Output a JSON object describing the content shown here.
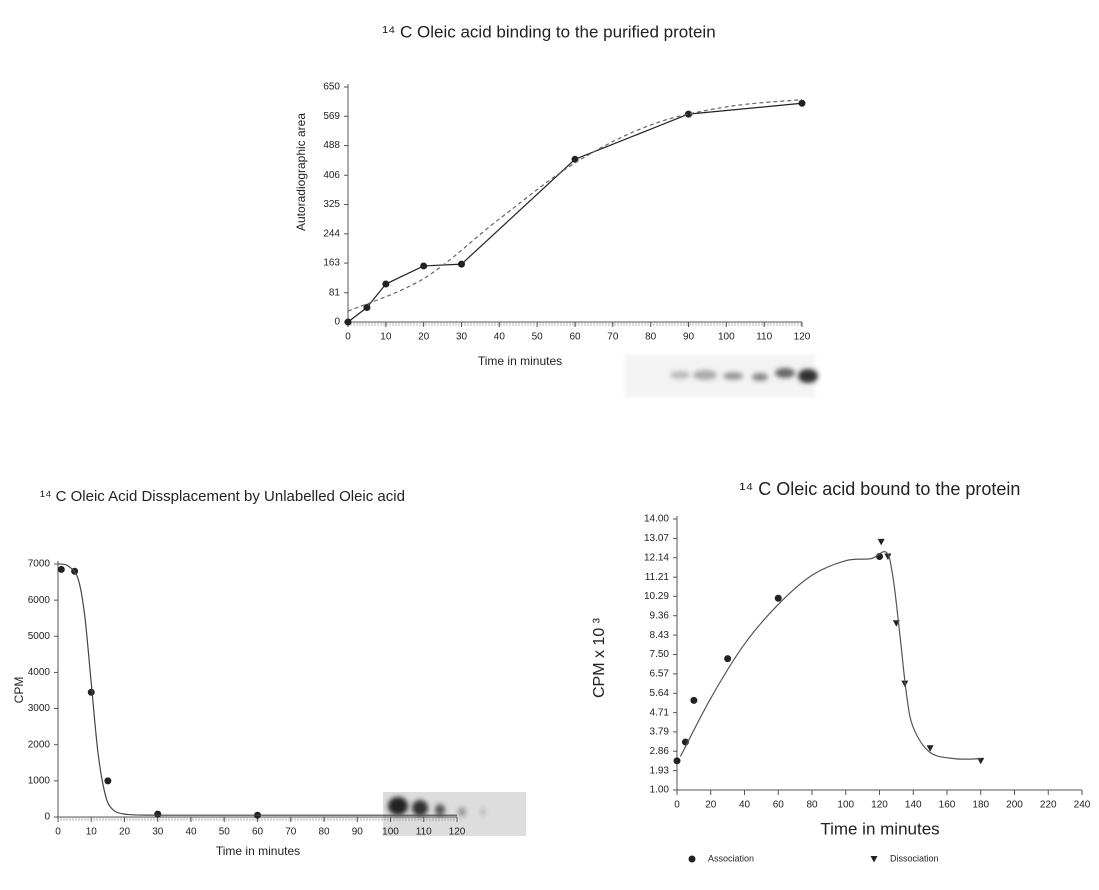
{
  "chart_data": [
    {
      "type": "line",
      "title": "¹⁴ C Oleic acid binding to the purified protein",
      "x_label": "Time in minutes",
      "y_label": "Autoradiographic area",
      "xlim": [
        0,
        120
      ],
      "xticks": [
        0,
        10,
        20,
        30,
        40,
        50,
        60,
        70,
        80,
        90,
        100,
        110,
        120
      ],
      "ylim": [
        0,
        650
      ],
      "yticks": [
        0,
        81,
        163,
        244,
        325,
        406,
        488,
        569,
        650
      ],
      "series": [
        {
          "color": "#222222",
          "marker": "circle",
          "line": "solid",
          "x": [
            0,
            5,
            10,
            20,
            30,
            60,
            90,
            120
          ],
          "values": [
            0,
            40,
            105,
            155,
            160,
            450,
            575,
            605
          ]
        },
        {
          "color": "#666666",
          "marker": "none",
          "line": "dashed",
          "x": [
            0,
            20,
            40,
            60,
            80,
            100,
            120
          ],
          "values": [
            30,
            120,
            285,
            440,
            545,
            595,
            615
          ]
        }
      ]
    },
    {
      "type": "line",
      "title": "¹⁴ C Oleic Acid Dissplacement by Unlabelled Oleic acid",
      "x_label": "Time in minutes",
      "y_label": "CPM",
      "xlim": [
        0,
        120
      ],
      "xticks": [
        0,
        10,
        20,
        30,
        40,
        50,
        60,
        70,
        80,
        90,
        100,
        110,
        120
      ],
      "ylim": [
        0,
        7000
      ],
      "yticks": [
        0,
        1000,
        2000,
        3000,
        4000,
        5000,
        6000,
        7000
      ],
      "series": [
        {
          "color": "#222222",
          "marker": "circle",
          "line": "none",
          "x": [
            1,
            5,
            10,
            15,
            30,
            60
          ],
          "values": [
            6850,
            6800,
            3450,
            1000,
            80,
            50
          ]
        },
        {
          "color": "#444444",
          "marker": "none",
          "line": "solid",
          "x": [
            0,
            3,
            6,
            8,
            10,
            12,
            14,
            16,
            20,
            30,
            60,
            120
          ],
          "values": [
            7000,
            6950,
            6600,
            5600,
            3700,
            1800,
            700,
            250,
            80,
            50,
            50,
            50
          ]
        }
      ]
    },
    {
      "type": "line",
      "title": "¹⁴ C Oleic acid bound to the protein",
      "x_label": "Time in minutes",
      "y_label": "CPM x 10 ³",
      "xlim": [
        0,
        240
      ],
      "xticks": [
        0,
        20,
        40,
        60,
        80,
        100,
        120,
        140,
        160,
        180,
        200,
        220,
        240
      ],
      "ylim": [
        1,
        14
      ],
      "yticks": [
        {
          "value": 1,
          "label": "1.00"
        },
        1.93,
        2.86,
        3.79,
        4.71,
        5.64,
        6.57,
        {
          "value": 7.5,
          "label": "7.50"
        },
        8.43,
        9.36,
        10.29,
        11.21,
        12.14,
        13.07,
        {
          "value": 14,
          "label": "14.00"
        }
      ],
      "legend": "bottom",
      "series": [
        {
          "name": "Association",
          "color": "#222222",
          "marker": "circle",
          "line": "none",
          "x": [
            0,
            5,
            10,
            30,
            60,
            120
          ],
          "values": [
            2.4,
            3.3,
            5.3,
            7.3,
            10.2,
            12.2
          ]
        },
        {
          "name": "Dissociation",
          "color": "#222222",
          "marker": "triangle",
          "line": "none",
          "x": [
            121,
            125,
            130,
            135,
            150,
            180
          ],
          "values": [
            12.9,
            12.2,
            9.0,
            6.1,
            3.0,
            2.4
          ]
        },
        {
          "color": "#555555",
          "marker": "none",
          "line": "solid",
          "x": [
            2,
            20,
            40,
            60,
            80,
            100,
            115,
            124,
            128,
            132,
            136,
            140,
            150,
            165,
            180
          ],
          "values": [
            2.6,
            5.4,
            8.0,
            9.9,
            11.3,
            12.0,
            12.1,
            12.4,
            11.2,
            8.5,
            5.6,
            4.0,
            2.8,
            2.5,
            2.5
          ]
        }
      ]
    }
  ]
}
